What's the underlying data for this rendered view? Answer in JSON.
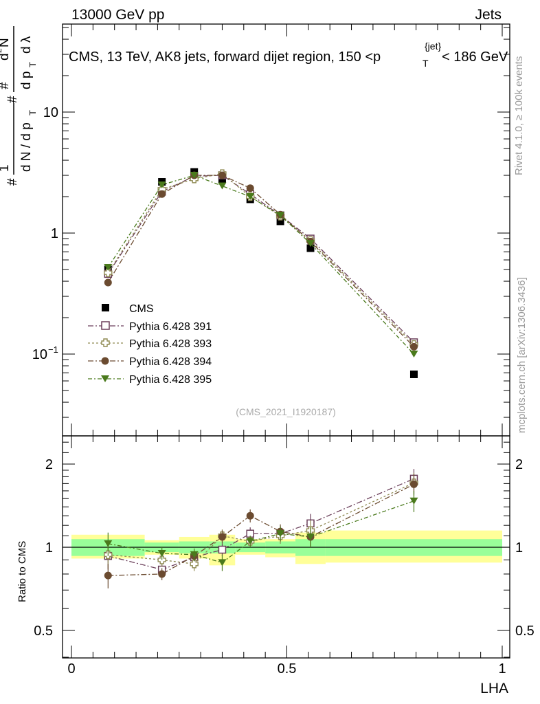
{
  "header": {
    "left": "13000 GeV pp",
    "right": "Jets"
  },
  "title": {
    "main": "CMS, 13 TeV, AK8 jets, forward dijet region, 150 <p",
    "sub_T": "T",
    "sup_jet": "{jet}",
    "tail": "< 186 GeV"
  },
  "ylabel_main": {
    "hash1": "#",
    "one": "1",
    "dNdpT": "d N / d p",
    "T": "T",
    "hash2": "#",
    "dpT": "d p",
    "T2": "T",
    "hash3": "#",
    "d2N": "d",
    "sq": "2",
    "N": "N",
    "dlambda": "d λ"
  },
  "side_labels": {
    "rivet": "Rivet 4.1.0, ≥ 100k events",
    "mcplots": "mcplots.cern.ch [arXiv:1306.3436]"
  },
  "watermark": "(CMS_2021_I1920187)",
  "ratio_ylabel": "Ratio to CMS",
  "xlabel": "LHA",
  "main_ticks": {
    "y": [
      {
        "value": 0.1,
        "label": "10",
        "sup": "−1"
      },
      {
        "value": 1,
        "label": "1",
        "sup": ""
      },
      {
        "value": 10,
        "label": "10",
        "sup": ""
      }
    ]
  },
  "ratio_ticks": {
    "y": [
      {
        "value": 0.5,
        "label": "0.5"
      },
      {
        "value": 1,
        "label": "1"
      },
      {
        "value": 2,
        "label": "2"
      }
    ]
  },
  "x_ticks": [
    {
      "value": 0,
      "label": "0"
    },
    {
      "value": 0.5,
      "label": "0.5"
    },
    {
      "value": 1,
      "label": "1"
    }
  ],
  "legend": [
    {
      "label": "CMS",
      "marker": "filled-square",
      "color": "#000000"
    },
    {
      "label": "Pythia 6.428 391",
      "marker": "open-square",
      "color": "#6b3f5a"
    },
    {
      "label": "Pythia 6.428 393",
      "marker": "open-cross",
      "color": "#8f8a52"
    },
    {
      "label": "Pythia 6.428 394",
      "marker": "filled-circle",
      "color": "#6b4b30"
    },
    {
      "label": "Pythia 6.428 395",
      "marker": "filled-triangle",
      "color": "#4a7a1c"
    }
  ],
  "chart_data": {
    "type": "scatter",
    "title": "CMS, 13 TeV, AK8 jets, forward dijet region, 150 < pT jet < 186 GeV",
    "xlabel": "LHA",
    "ylabel": "1/dN/dpT d2N/dpT dλ",
    "xlim": [
      -0.02,
      1.02
    ],
    "ylim_main": [
      0.025,
      60
    ],
    "ylim_ratio": [
      0.4,
      2.4
    ],
    "yscale_main": "log",
    "yscale_ratio": "log",
    "bins": [
      [
        0.0,
        0.17
      ],
      [
        0.17,
        0.25
      ],
      [
        0.25,
        0.32
      ],
      [
        0.32,
        0.38
      ],
      [
        0.38,
        0.45
      ],
      [
        0.45,
        0.52
      ],
      [
        0.52,
        0.59
      ],
      [
        0.59,
        1.0
      ]
    ],
    "x": [
      0.085,
      0.21,
      0.285,
      0.35,
      0.415,
      0.485,
      0.555,
      0.795
    ],
    "series": [
      {
        "name": "CMS",
        "values": [
          0.5,
          2.65,
          3.2,
          2.8,
          1.9,
          1.25,
          0.75,
          0.068
        ]
      },
      {
        "name": "Pythia 6.428 391",
        "values": [
          0.46,
          2.2,
          2.95,
          3.0,
          2.1,
          1.4,
          0.9,
          0.125
        ],
        "ratio": [
          0.93,
          0.83,
          0.92,
          0.98,
          1.12,
          1.12,
          1.22,
          1.77
        ],
        "ratio_err": [
          0.1,
          0.05,
          0.05,
          0.05,
          0.06,
          0.07,
          0.1,
          0.15
        ]
      },
      {
        "name": "Pythia 6.428 393",
        "values": [
          0.47,
          2.3,
          2.8,
          3.1,
          2.0,
          1.38,
          0.87,
          0.12
        ],
        "ratio": [
          0.94,
          0.9,
          0.87,
          1.1,
          1.05,
          1.1,
          1.15,
          1.71
        ],
        "ratio_err": [
          0.1,
          0.05,
          0.05,
          0.06,
          0.05,
          0.07,
          0.1,
          0.15
        ]
      },
      {
        "name": "Pythia 6.428 394",
        "values": [
          0.39,
          2.1,
          3.0,
          3.0,
          2.35,
          1.42,
          0.85,
          0.115
        ],
        "ratio": [
          0.79,
          0.8,
          0.93,
          1.09,
          1.3,
          1.14,
          1.09,
          1.69
        ],
        "ratio_err": [
          0.08,
          0.04,
          0.04,
          0.06,
          0.07,
          0.07,
          0.09,
          0.15
        ]
      },
      {
        "name": "Pythia 6.428 395",
        "values": [
          0.52,
          2.5,
          3.0,
          2.45,
          2.0,
          1.4,
          0.82,
          0.1
        ],
        "ratio": [
          1.03,
          0.95,
          0.94,
          0.88,
          1.05,
          1.12,
          1.09,
          1.47
        ],
        "ratio_err": [
          0.1,
          0.05,
          0.05,
          0.06,
          0.05,
          0.07,
          0.09,
          0.13
        ]
      }
    ],
    "cms_uncertainty_ratio": {
      "inner": [
        [
          0.93,
          1.07
        ],
        [
          0.96,
          1.04
        ],
        [
          0.95,
          1.05
        ],
        [
          0.95,
          1.05
        ],
        [
          0.96,
          1.04
        ],
        [
          0.95,
          1.05
        ],
        [
          0.93,
          1.07
        ],
        [
          0.93,
          1.07
        ]
      ],
      "outer": [
        [
          0.91,
          1.11
        ],
        [
          0.94,
          1.06
        ],
        [
          0.91,
          1.09
        ],
        [
          0.86,
          1.11
        ],
        [
          0.94,
          1.07
        ],
        [
          0.92,
          1.07
        ],
        [
          0.87,
          1.13
        ],
        [
          0.88,
          1.15
        ]
      ]
    }
  }
}
